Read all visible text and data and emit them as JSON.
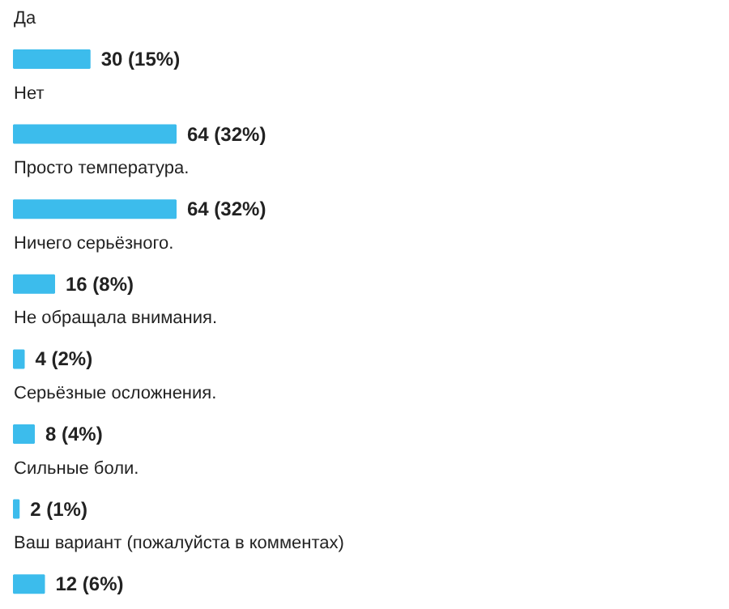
{
  "chart_data": {
    "type": "bar",
    "orientation": "horizontal",
    "categories": [
      "Да",
      "Нет",
      "Просто температура.",
      "Ничего серьёзного.",
      "Не обращала внимания.",
      "Серьёзные осложнения.",
      "Сильные боли.",
      "Ваш вариант (пожалуйста в комментах)"
    ],
    "values": [
      30,
      64,
      64,
      16,
      4,
      8,
      2,
      12
    ],
    "value_labels": [
      "30 (15%)",
      "64 (32%)",
      "64 (32%)",
      "16 (8%)",
      "4 (2%)",
      "8 (4%)",
      "2 (1%)",
      "12 (6%)"
    ],
    "color": "#3cbcec"
  }
}
